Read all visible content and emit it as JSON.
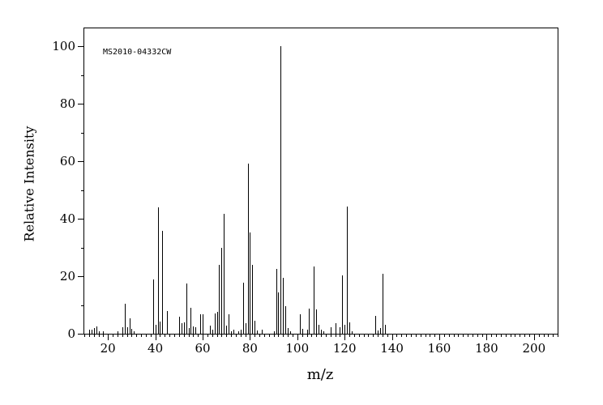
{
  "figure": {
    "background": "#ffffff",
    "foreground": "#000000",
    "annotation": "MS2010-04332CW"
  },
  "axes": {
    "x_title": "m/z",
    "y_title": "Relative Intensity",
    "x_tick_labels": [
      "20",
      "40",
      "60",
      "80",
      "100",
      "120",
      "140",
      "160",
      "180",
      "200"
    ],
    "y_tick_labels": [
      "0",
      "20",
      "40",
      "60",
      "80",
      "100"
    ]
  },
  "chart_data": {
    "type": "bar",
    "title": "",
    "xlabel": "m/z",
    "ylabel": "Relative Intensity",
    "annotation": "MS2010-04332CW",
    "xlim": [
      10,
      210
    ],
    "ylim": [
      0,
      106.3
    ],
    "x_minor_tick_step": 2,
    "x_major_tick_step": 20,
    "y_minor_tick_step": 10,
    "y_major_tick_step": 20,
    "grid": false,
    "legend": false,
    "bar_color": "#000000",
    "peaks": [
      [
        12,
        1.3
      ],
      [
        13,
        1.3
      ],
      [
        14,
        1.9
      ],
      [
        15,
        2.6
      ],
      [
        16,
        1.0
      ],
      [
        18,
        0.9
      ],
      [
        24,
        0.8
      ],
      [
        26,
        2.4
      ],
      [
        27,
        10.4
      ],
      [
        28,
        2.3
      ],
      [
        29,
        5.3
      ],
      [
        30,
        1.7
      ],
      [
        31,
        0.9
      ],
      [
        39,
        18.9
      ],
      [
        40,
        3.2
      ],
      [
        41,
        43.9
      ],
      [
        42,
        4.2
      ],
      [
        43,
        35.9
      ],
      [
        45,
        8.0
      ],
      [
        50,
        5.9
      ],
      [
        51,
        3.6
      ],
      [
        52,
        3.9
      ],
      [
        53,
        17.6
      ],
      [
        54,
        2.0
      ],
      [
        55,
        9.0
      ],
      [
        56,
        2.5
      ],
      [
        57,
        2.4
      ],
      [
        59,
        6.8
      ],
      [
        60,
        6.8
      ],
      [
        63,
        2.8
      ],
      [
        64,
        1.4
      ],
      [
        65,
        7.0
      ],
      [
        66,
        7.5
      ],
      [
        67,
        24.0
      ],
      [
        68,
        29.9
      ],
      [
        69,
        41.8
      ],
      [
        70,
        2.7
      ],
      [
        71,
        6.7
      ],
      [
        72,
        1.0
      ],
      [
        73,
        1.5
      ],
      [
        75,
        1.0
      ],
      [
        76,
        1.4
      ],
      [
        77,
        17.8
      ],
      [
        78,
        3.8
      ],
      [
        79,
        59.3
      ],
      [
        80,
        35.3
      ],
      [
        81,
        23.9
      ],
      [
        82,
        4.4
      ],
      [
        83,
        1.2
      ],
      [
        85,
        1.5
      ],
      [
        90,
        1.0
      ],
      [
        91,
        22.6
      ],
      [
        92,
        14.3
      ],
      [
        93,
        100.0
      ],
      [
        94,
        19.5
      ],
      [
        95,
        9.7
      ],
      [
        96,
        2.1
      ],
      [
        97,
        1.0
      ],
      [
        101,
        6.8
      ],
      [
        102,
        1.8
      ],
      [
        104,
        1.5
      ],
      [
        105,
        8.7
      ],
      [
        107,
        23.3
      ],
      [
        108,
        8.4
      ],
      [
        109,
        3.0
      ],
      [
        110,
        1.5
      ],
      [
        111,
        0.9
      ],
      [
        114,
        2.4
      ],
      [
        116,
        3.7
      ],
      [
        118,
        2.4
      ],
      [
        119,
        20.3
      ],
      [
        120,
        3.0
      ],
      [
        121,
        44.4
      ],
      [
        122,
        4.1
      ],
      [
        123,
        1.0
      ],
      [
        133,
        6.1
      ],
      [
        134,
        1.2
      ],
      [
        135,
        1.9
      ],
      [
        136,
        20.8
      ],
      [
        137,
        3.2
      ]
    ]
  }
}
